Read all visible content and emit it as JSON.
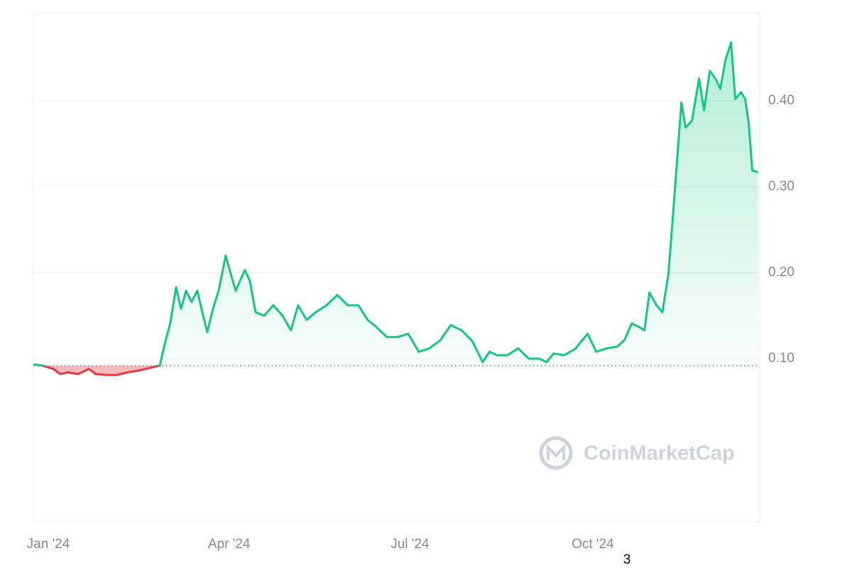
{
  "chart_data": {
    "type": "line",
    "watermark": "CoinMarketCap",
    "footnote": "3",
    "x": [
      -7.5,
      -2.9,
      2.5,
      6.1,
      9.6,
      15,
      20.4,
      23.9,
      29.3,
      34.6,
      40,
      45.4,
      50.7,
      56.1,
      58.6,
      61.4,
      64.3,
      66.8,
      69.3,
      72.1,
      75,
      77.5,
      80,
      82.9,
      85.7,
      89.3,
      91.8,
      94.3,
      98.9,
      101.4,
      104.3,
      108.6,
      113.2,
      117.9,
      122.1,
      125.7,
      130,
      134.6,
      140,
      145.4,
      150.7,
      156.1,
      160.7,
      165,
      170.4,
      175.7,
      181.1,
      186.4,
      191.8,
      197.1,
      202.5,
      207.9,
      213.2,
      218.6,
      222.1,
      225.7,
      231.1,
      236.4,
      241.8,
      247.1,
      250.7,
      254.3,
      259.6,
      265,
      271.4,
      275.7,
      281.1,
      286.4,
      290,
      293.6,
      297.1,
      300,
      302.5,
      306.1,
      309,
      312.1,
      315,
      318.6,
      320.7,
      323.9,
      327.5,
      330,
      332.9,
      335.7,
      338.2,
      340.7,
      343.6,
      345.7,
      348.6,
      350.7,
      352.5,
      354.3,
      357.1
    ],
    "values": [
      0.0934,
      0.092,
      0.088,
      0.082,
      0.084,
      0.082,
      0.088,
      0.082,
      0.081,
      0.081,
      0.084,
      0.086,
      0.089,
      0.092,
      0.117,
      0.141,
      0.183,
      0.158,
      0.179,
      0.166,
      0.179,
      0.154,
      0.131,
      0.158,
      0.179,
      0.22,
      0.199,
      0.179,
      0.203,
      0.191,
      0.154,
      0.15,
      0.162,
      0.15,
      0.133,
      0.162,
      0.145,
      0.154,
      0.162,
      0.174,
      0.162,
      0.162,
      0.145,
      0.137,
      0.125,
      0.125,
      0.129,
      0.108,
      0.112,
      0.121,
      0.139,
      0.133,
      0.121,
      0.096,
      0.108,
      0.104,
      0.104,
      0.112,
      0.1,
      0.1,
      0.096,
      0.106,
      0.104,
      0.111,
      0.129,
      0.108,
      0.112,
      0.114,
      0.122,
      0.141,
      0.137,
      0.133,
      0.177,
      0.162,
      0.154,
      0.199,
      0.286,
      0.398,
      0.369,
      0.377,
      0.426,
      0.389,
      0.435,
      0.426,
      0.414,
      0.447,
      0.468,
      0.402,
      0.41,
      0.402,
      0.373,
      0.319,
      0.317
    ],
    "baseline": 0.0917,
    "up_color": "#16c784",
    "down_color": "#ea3943",
    "xlim": [
      -7.5,
      358
    ],
    "xticks": [
      {
        "value": 0,
        "label": "Jan '24"
      },
      {
        "value": 91,
        "label": "Apr '24"
      },
      {
        "value": 182,
        "label": "Jul '24"
      },
      {
        "value": 274,
        "label": "Oct '24"
      }
    ],
    "ylim": [
      -0.09,
      0.5025
    ],
    "yticks": [
      {
        "value": 0.1,
        "label": "0.10"
      },
      {
        "value": 0.2,
        "label": "0.20"
      },
      {
        "value": 0.3,
        "label": "0.30"
      },
      {
        "value": 0.4,
        "label": "0.40"
      }
    ],
    "grid": true
  }
}
